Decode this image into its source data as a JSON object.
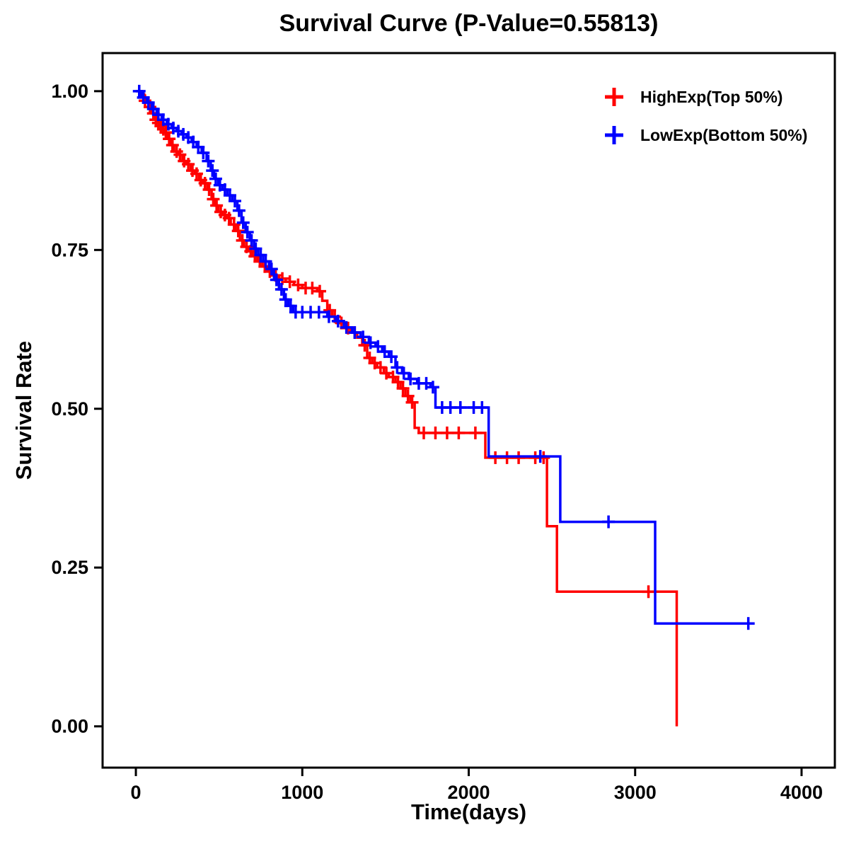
{
  "chart_data": {
    "type": "line",
    "subtype": "kaplan-meier-survival-step",
    "title": "Survival Curve (P-Value=0.55813)",
    "p_value": "0.55813",
    "xlabel": "Time(days)",
    "ylabel": "Survival Rate",
    "grid": false,
    "legend_position": "top-right-inside",
    "x_range": [
      -200,
      4200
    ],
    "y_range": [
      -0.065,
      1.06
    ],
    "x_ticks": {
      "values": [
        0,
        1000,
        2000,
        3000,
        4000
      ],
      "labels": [
        "0",
        "1000",
        "2000",
        "3000",
        "4000"
      ]
    },
    "y_ticks": {
      "values": [
        0,
        0.25,
        0.5,
        0.75,
        1
      ],
      "labels": [
        "0.00",
        "0.25",
        "0.50",
        "0.75",
        "1.00"
      ]
    },
    "series": [
      {
        "id": "highexp",
        "name": "HighExp(Top 50%)",
        "color": "#FF0000",
        "marker": "plus-censor",
        "steps": [
          [
            0,
            1.0
          ],
          [
            25,
            0.995
          ],
          [
            50,
            0.985
          ],
          [
            75,
            0.975
          ],
          [
            95,
            0.965
          ],
          [
            110,
            0.955
          ],
          [
            125,
            0.95
          ],
          [
            140,
            0.945
          ],
          [
            155,
            0.94
          ],
          [
            170,
            0.935
          ],
          [
            190,
            0.925
          ],
          [
            210,
            0.915
          ],
          [
            230,
            0.905
          ],
          [
            255,
            0.9
          ],
          [
            280,
            0.89
          ],
          [
            305,
            0.885
          ],
          [
            330,
            0.875
          ],
          [
            355,
            0.87
          ],
          [
            380,
            0.86
          ],
          [
            405,
            0.855
          ],
          [
            430,
            0.845
          ],
          [
            455,
            0.83
          ],
          [
            475,
            0.82
          ],
          [
            495,
            0.81
          ],
          [
            520,
            0.805
          ],
          [
            545,
            0.8
          ],
          [
            570,
            0.79
          ],
          [
            600,
            0.78
          ],
          [
            625,
            0.765
          ],
          [
            650,
            0.755
          ],
          [
            675,
            0.748
          ],
          [
            700,
            0.74
          ],
          [
            730,
            0.732
          ],
          [
            760,
            0.724
          ],
          [
            790,
            0.716
          ],
          [
            820,
            0.71
          ],
          [
            860,
            0.705
          ],
          [
            900,
            0.7
          ],
          [
            950,
            0.695
          ],
          [
            1000,
            0.69
          ],
          [
            1090,
            0.685
          ],
          [
            1120,
            0.67
          ],
          [
            1150,
            0.655
          ],
          [
            1180,
            0.645
          ],
          [
            1210,
            0.635
          ],
          [
            1250,
            0.627
          ],
          [
            1290,
            0.62
          ],
          [
            1330,
            0.612
          ],
          [
            1360,
            0.6
          ],
          [
            1390,
            0.58
          ],
          [
            1420,
            0.572
          ],
          [
            1450,
            0.565
          ],
          [
            1490,
            0.556
          ],
          [
            1520,
            0.55
          ],
          [
            1560,
            0.542
          ],
          [
            1590,
            0.532
          ],
          [
            1620,
            0.52
          ],
          [
            1650,
            0.51
          ],
          [
            1675,
            0.47
          ],
          [
            1700,
            0.462
          ],
          [
            2100,
            0.423
          ],
          [
            2470,
            0.315
          ],
          [
            2530,
            0.212
          ],
          [
            3250,
            0.0
          ]
        ],
        "censor_times": [
          55,
          85,
          105,
          120,
          135,
          150,
          165,
          180,
          200,
          220,
          245,
          265,
          290,
          315,
          340,
          365,
          390,
          415,
          440,
          465,
          485,
          510,
          535,
          560,
          590,
          615,
          640,
          665,
          690,
          715,
          745,
          775,
          805,
          840,
          880,
          925,
          975,
          1020,
          1060,
          1105,
          1165,
          1195,
          1235,
          1275,
          1315,
          1375,
          1405,
          1435,
          1470,
          1505,
          1545,
          1575,
          1605,
          1635,
          1660,
          1730,
          1800,
          1870,
          1940,
          2040,
          2160,
          2230,
          2300,
          2400,
          2450,
          3080
        ]
      },
      {
        "id": "lowexp",
        "name": "LowExp(Bottom 50%)",
        "color": "#0000FF",
        "marker": "plus-censor",
        "steps": [
          [
            0,
            1.0
          ],
          [
            35,
            0.99
          ],
          [
            65,
            0.982
          ],
          [
            95,
            0.972
          ],
          [
            125,
            0.963
          ],
          [
            155,
            0.955
          ],
          [
            185,
            0.948
          ],
          [
            215,
            0.942
          ],
          [
            245,
            0.937
          ],
          [
            275,
            0.932
          ],
          [
            305,
            0.927
          ],
          [
            335,
            0.92
          ],
          [
            365,
            0.912
          ],
          [
            395,
            0.903
          ],
          [
            425,
            0.89
          ],
          [
            450,
            0.875
          ],
          [
            470,
            0.862
          ],
          [
            495,
            0.852
          ],
          [
            520,
            0.845
          ],
          [
            550,
            0.836
          ],
          [
            580,
            0.827
          ],
          [
            610,
            0.812
          ],
          [
            635,
            0.793
          ],
          [
            660,
            0.778
          ],
          [
            685,
            0.765
          ],
          [
            710,
            0.752
          ],
          [
            735,
            0.742
          ],
          [
            765,
            0.732
          ],
          [
            800,
            0.72
          ],
          [
            830,
            0.703
          ],
          [
            860,
            0.688
          ],
          [
            890,
            0.672
          ],
          [
            915,
            0.662
          ],
          [
            945,
            0.652
          ],
          [
            1150,
            0.645
          ],
          [
            1200,
            0.638
          ],
          [
            1250,
            0.628
          ],
          [
            1300,
            0.62
          ],
          [
            1350,
            0.613
          ],
          [
            1400,
            0.604
          ],
          [
            1440,
            0.598
          ],
          [
            1480,
            0.59
          ],
          [
            1520,
            0.582
          ],
          [
            1560,
            0.565
          ],
          [
            1600,
            0.556
          ],
          [
            1640,
            0.547
          ],
          [
            1690,
            0.54
          ],
          [
            1770,
            0.534
          ],
          [
            1800,
            0.502
          ],
          [
            2120,
            0.425
          ],
          [
            2550,
            0.322
          ],
          [
            3120,
            0.162
          ],
          [
            3700,
            0.162
          ]
        ],
        "censor_times": [
          20,
          45,
          75,
          105,
          135,
          165,
          195,
          225,
          255,
          285,
          315,
          345,
          375,
          405,
          435,
          460,
          480,
          505,
          535,
          565,
          595,
          620,
          645,
          670,
          695,
          720,
          750,
          780,
          815,
          845,
          875,
          900,
          930,
          960,
          1000,
          1050,
          1100,
          1160,
          1215,
          1265,
          1315,
          1365,
          1410,
          1455,
          1495,
          1535,
          1570,
          1610,
          1650,
          1700,
          1745,
          1785,
          1840,
          1890,
          1950,
          2030,
          2080,
          2430,
          2840,
          3680
        ]
      }
    ]
  }
}
